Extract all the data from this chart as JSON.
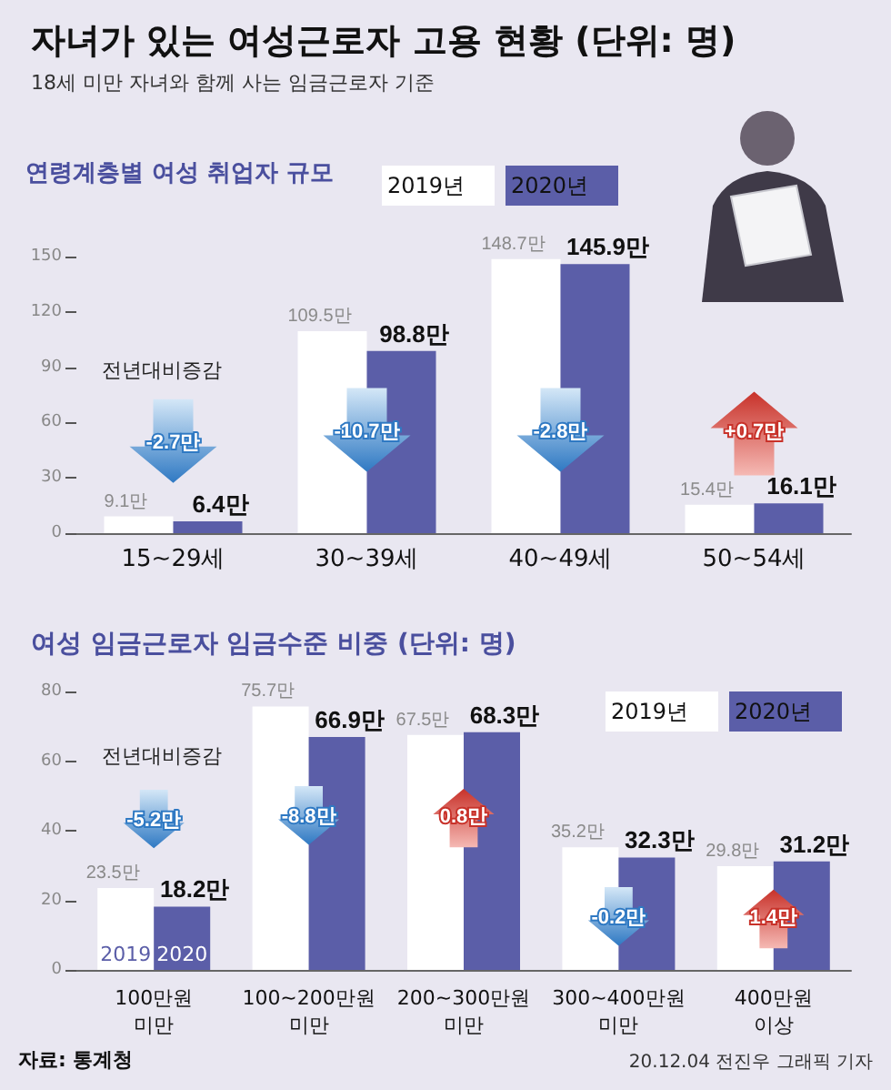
{
  "chart_data": [
    {
      "type": "bar",
      "title": "자녀가 있는 여성근로자 고용 현황 (단위: 명)",
      "subtitle": "18세 미만 자녀와 함께 사는 임금근로자 기준",
      "categories": [
        "15~29세",
        "30~39세",
        "40~49세",
        "50~54세"
      ],
      "series": [
        {
          "name": "2019년",
          "color": "#ffffff",
          "values": [
            9.1,
            109.5,
            148.7,
            15.4
          ],
          "value_labels": [
            "9.1만",
            "109.5만",
            "148.7만",
            "15.4만"
          ]
        },
        {
          "name": "2020년",
          "color": "#5b5ea8",
          "values": [
            6.4,
            98.8,
            145.9,
            16.1
          ],
          "value_labels": [
            "6.4만",
            "98.8만",
            "145.9만",
            "16.1만"
          ]
        }
      ],
      "ylim": [
        0,
        150
      ],
      "yticks": [
        0,
        30,
        60,
        90,
        120,
        150
      ],
      "grid": false,
      "legend": "top",
      "annotations": [
        "연령계층별 여성 취업자 규모",
        "전년대비증감",
        "-2.7만",
        "-10.7만",
        "-2.8만",
        "+0.7만"
      ]
    },
    {
      "type": "bar",
      "title": "여성 임금근로자 임금수준 비중 (단위: 명)",
      "categories": [
        "100만원\n미만",
        "100~200만원\n미만",
        "200~300만원\n미만",
        "300~400만원\n미만",
        "400만원\n이상"
      ],
      "series": [
        {
          "name": "2019년",
          "color": "#ffffff",
          "values": [
            23.5,
            75.7,
            67.5,
            35.2,
            29.8
          ],
          "value_labels": [
            "23.5만",
            "75.7만",
            "67.5만",
            "35.2만",
            "29.8만"
          ]
        },
        {
          "name": "2020년",
          "color": "#5b5ea8",
          "values": [
            18.2,
            66.9,
            68.3,
            32.3,
            31.2
          ],
          "value_labels": [
            "18.2만",
            "66.9만",
            "68.3만",
            "32.3만",
            "31.2만"
          ]
        }
      ],
      "ylim": [
        0,
        80
      ],
      "yticks": [
        0,
        20,
        40,
        60,
        80
      ],
      "grid": false,
      "legend": "top right",
      "annotations": [
        "전년대비증감",
        "자료: 통계청",
        "20.12.04 전진우 그래픽 기자",
        "-5.2만",
        "-8.8만",
        "0.8만",
        "-0.2만",
        "1.4만",
        {
          "text": "2019",
          "x": "100만원\n미만"
        },
        {
          "text": "2020",
          "x": "100만원\n미만"
        }
      ]
    }
  ]
}
